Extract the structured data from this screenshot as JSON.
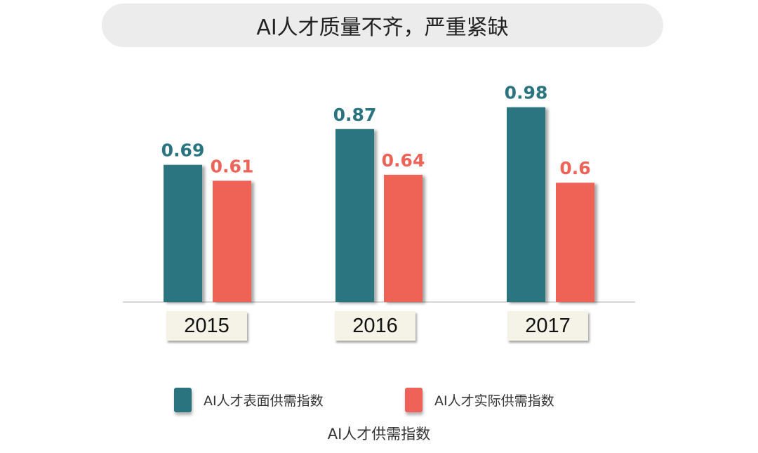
{
  "chart_data": {
    "type": "bar",
    "title": "AI人才质量不齐，严重紧缺",
    "subtitle": "AI人才供需指数",
    "categories": [
      "2015",
      "2016",
      "2017"
    ],
    "series": [
      {
        "name": "AI人才表面供需指数",
        "values": [
          0.69,
          0.87,
          0.98
        ],
        "color": "#2a7480"
      },
      {
        "name": "AI人才实际供需指数",
        "values": [
          0.61,
          0.64,
          0.6
        ],
        "color": "#ef6257"
      }
    ],
    "ylim": [
      0,
      1.0
    ],
    "grid": false,
    "legend_position": "bottom",
    "data_labels": [
      [
        "0.69",
        "0.87",
        "0.98"
      ],
      [
        "0.61",
        "0.64",
        "0.6"
      ]
    ]
  }
}
